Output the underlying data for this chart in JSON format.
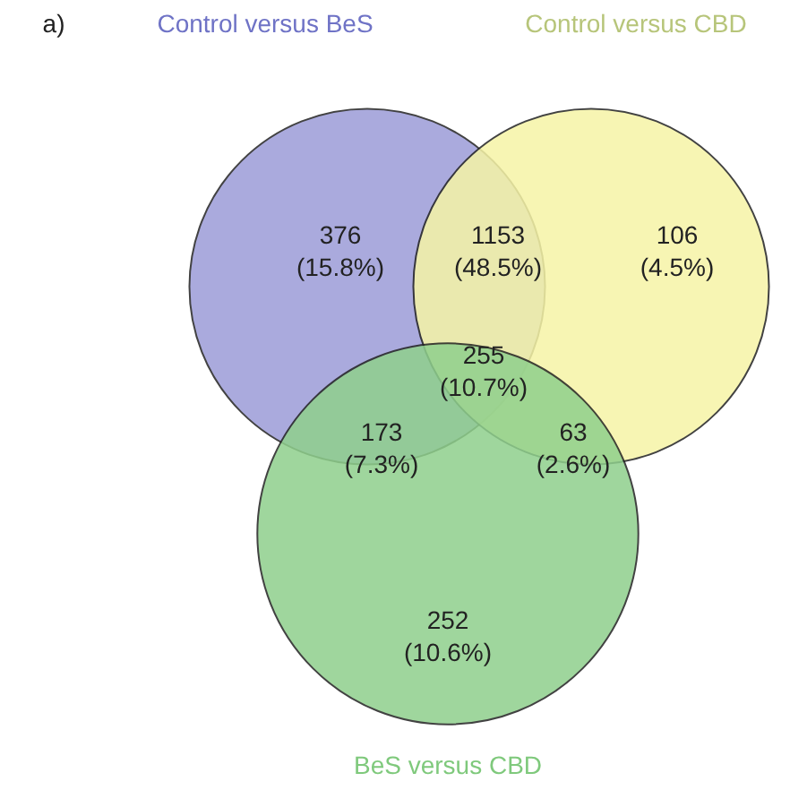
{
  "chart_data": {
    "type": "other",
    "title": "a)",
    "annotations": [
      "Control versus BeS",
      "Control versus CBD",
      "BeS versus CBD",
      "(15.8%)",
      "(48.5%)",
      "(4.5%)",
      "(10.7%)",
      "(7.3%)",
      "(2.6%)",
      "(10.6%)"
    ],
    "categories": [
      null,
      null,
      null,
      null,
      null,
      null,
      null
    ],
    "values": [
      376,
      1153,
      106,
      255,
      173,
      63,
      252
    ],
    "data_labels": true
  }
}
